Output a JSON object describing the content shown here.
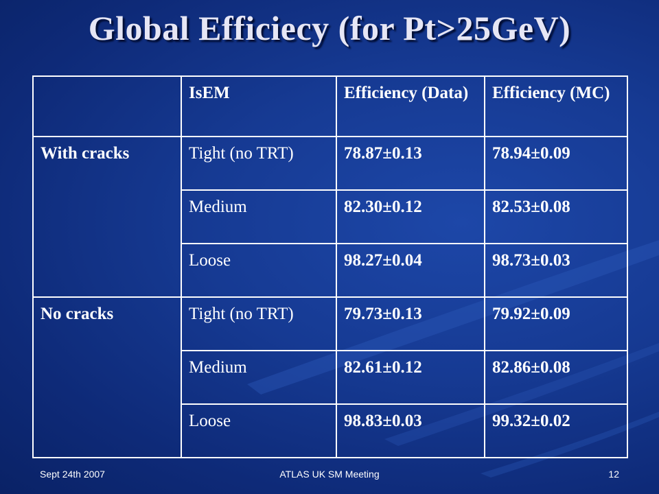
{
  "slide": {
    "title": "Global Efficiecy (for Pt>25GeV)",
    "footer": {
      "left": "Sept 24th 2007",
      "center": "ATLAS UK SM Meeting",
      "page_number": "12"
    }
  },
  "table": {
    "headers": [
      "",
      "IsEM",
      "Efficiency (Data)",
      "Efficiency (MC)"
    ],
    "groups": [
      {
        "label": "With cracks",
        "rows": [
          {
            "isem": "Tight (no TRT)",
            "data": "78.87±0.13",
            "mc": "78.94±0.09"
          },
          {
            "isem": "Medium",
            "data": "82.30±0.12",
            "mc": "82.53±0.08"
          },
          {
            "isem": "Loose",
            "data": "98.27±0.04",
            "mc": "98.73±0.03"
          }
        ]
      },
      {
        "label": "No cracks",
        "rows": [
          {
            "isem": "Tight (no TRT)",
            "data": "79.73±0.13",
            "mc": "79.92±0.09"
          },
          {
            "isem": "Medium",
            "data": "82.61±0.12",
            "mc": "82.86±0.08"
          },
          {
            "isem": "Loose",
            "data": "98.83±0.03",
            "mc": "99.32±0.02"
          }
        ]
      }
    ]
  },
  "colors": {
    "background": "#163a93",
    "header_text": "#ffd060",
    "group_label": "#ff4a1c",
    "isem_text": "#e8e8f4",
    "border": "#ffffff"
  }
}
